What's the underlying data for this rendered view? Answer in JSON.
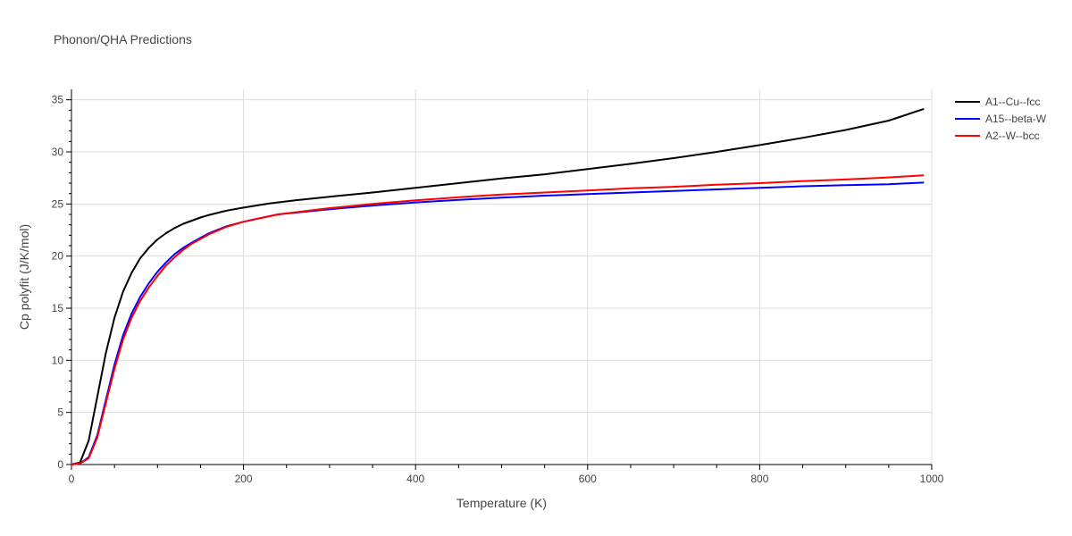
{
  "title": "Phonon/QHA Predictions",
  "chart_data": {
    "type": "line",
    "title": "Phonon/QHA Predictions",
    "xlabel": "Temperature (K)",
    "ylabel": "Cp polyfit (J/K/mol)",
    "xlim": [
      0,
      1000
    ],
    "ylim": [
      0,
      36
    ],
    "x_ticks": [
      0,
      200,
      400,
      600,
      800,
      1000
    ],
    "y_ticks": [
      0,
      5,
      10,
      15,
      20,
      25,
      30,
      35
    ],
    "grid": true,
    "legend_position": "top-right",
    "series": [
      {
        "name": "A1--Cu--fcc",
        "color": "#000000",
        "x": [
          0,
          10,
          20,
          30,
          40,
          50,
          60,
          70,
          80,
          90,
          100,
          110,
          120,
          130,
          140,
          150,
          160,
          180,
          200,
          230,
          260,
          300,
          350,
          400,
          450,
          500,
          550,
          600,
          650,
          700,
          750,
          800,
          850,
          900,
          950,
          990
        ],
        "y": [
          0,
          0.2,
          2.3,
          6.5,
          10.7,
          14.1,
          16.6,
          18.4,
          19.8,
          20.8,
          21.6,
          22.2,
          22.7,
          23.1,
          23.4,
          23.7,
          23.95,
          24.35,
          24.65,
          25.05,
          25.35,
          25.7,
          26.1,
          26.55,
          27.0,
          27.45,
          27.85,
          28.35,
          28.85,
          29.4,
          30.0,
          30.65,
          31.35,
          32.1,
          33.0,
          34.1
        ]
      },
      {
        "name": "A15--beta-W",
        "color": "#0000ff",
        "x": [
          0,
          10,
          20,
          30,
          40,
          50,
          60,
          70,
          80,
          90,
          100,
          110,
          120,
          130,
          140,
          160,
          180,
          200,
          240,
          300,
          350,
          400,
          450,
          500,
          550,
          600,
          650,
          700,
          750,
          800,
          850,
          900,
          950,
          990
        ],
        "y": [
          0,
          0.1,
          0.7,
          2.8,
          6.2,
          9.6,
          12.4,
          14.5,
          16.1,
          17.4,
          18.5,
          19.4,
          20.2,
          20.8,
          21.3,
          22.2,
          22.85,
          23.3,
          24.0,
          24.5,
          24.85,
          25.15,
          25.4,
          25.6,
          25.8,
          25.95,
          26.1,
          26.25,
          26.4,
          26.55,
          26.7,
          26.8,
          26.9,
          27.05
        ]
      },
      {
        "name": "A2--W--bcc",
        "color": "#ff0000",
        "x": [
          0,
          10,
          20,
          30,
          40,
          50,
          60,
          70,
          80,
          90,
          100,
          110,
          120,
          130,
          140,
          160,
          180,
          200,
          240,
          300,
          350,
          400,
          450,
          500,
          550,
          600,
          650,
          700,
          750,
          800,
          850,
          900,
          950,
          990
        ],
        "y": [
          0,
          0.1,
          0.6,
          2.6,
          5.9,
          9.2,
          12.0,
          14.1,
          15.7,
          17.0,
          18.1,
          19.1,
          19.9,
          20.6,
          21.2,
          22.1,
          22.8,
          23.3,
          24.0,
          24.6,
          25.0,
          25.35,
          25.65,
          25.9,
          26.1,
          26.3,
          26.5,
          26.65,
          26.85,
          27.0,
          27.2,
          27.35,
          27.55,
          27.75
        ]
      }
    ]
  }
}
